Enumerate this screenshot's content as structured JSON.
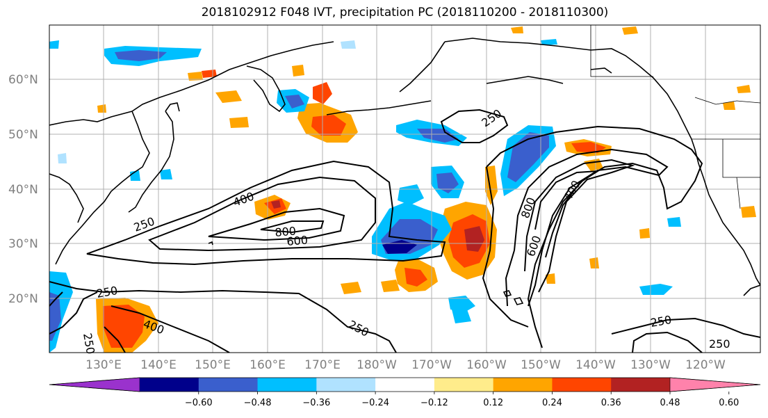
{
  "title": "2018102912 F048 IVT, precipitation PC (2018110200 - 2018110300)",
  "map": {
    "lat_labels": [
      "20°N",
      "30°N",
      "40°N",
      "50°N",
      "60°N"
    ],
    "lon_labels": [
      "130°E",
      "140°E",
      "150°E",
      "160°E",
      "170°E",
      "180°W",
      "170°W",
      "160°W",
      "150°W",
      "140°W",
      "130°W",
      "120°W"
    ]
  },
  "ivt_contour_labels": [
    "250",
    "250",
    "250",
    "250",
    "250",
    "250",
    "250",
    "400",
    "400",
    "400",
    "600",
    "600",
    "800",
    "800"
  ],
  "colorbar": {
    "tick_labels": [
      "−0.60",
      "−0.48",
      "−0.36",
      "−0.24",
      "−0.12",
      "0.12",
      "0.24",
      "0.36",
      "0.48",
      "0.60"
    ],
    "colors": [
      "#9a32cd",
      "#00008b",
      "#3a5fcd",
      "#00bfff",
      "#b0e2ff",
      "#ffffff",
      "#ffec8b",
      "#ffa500",
      "#ff4500",
      "#b22222",
      "#ff82ab"
    ]
  },
  "legend_colors": {
    "land_outline": "#000000",
    "grid": "#b0b0b0"
  }
}
